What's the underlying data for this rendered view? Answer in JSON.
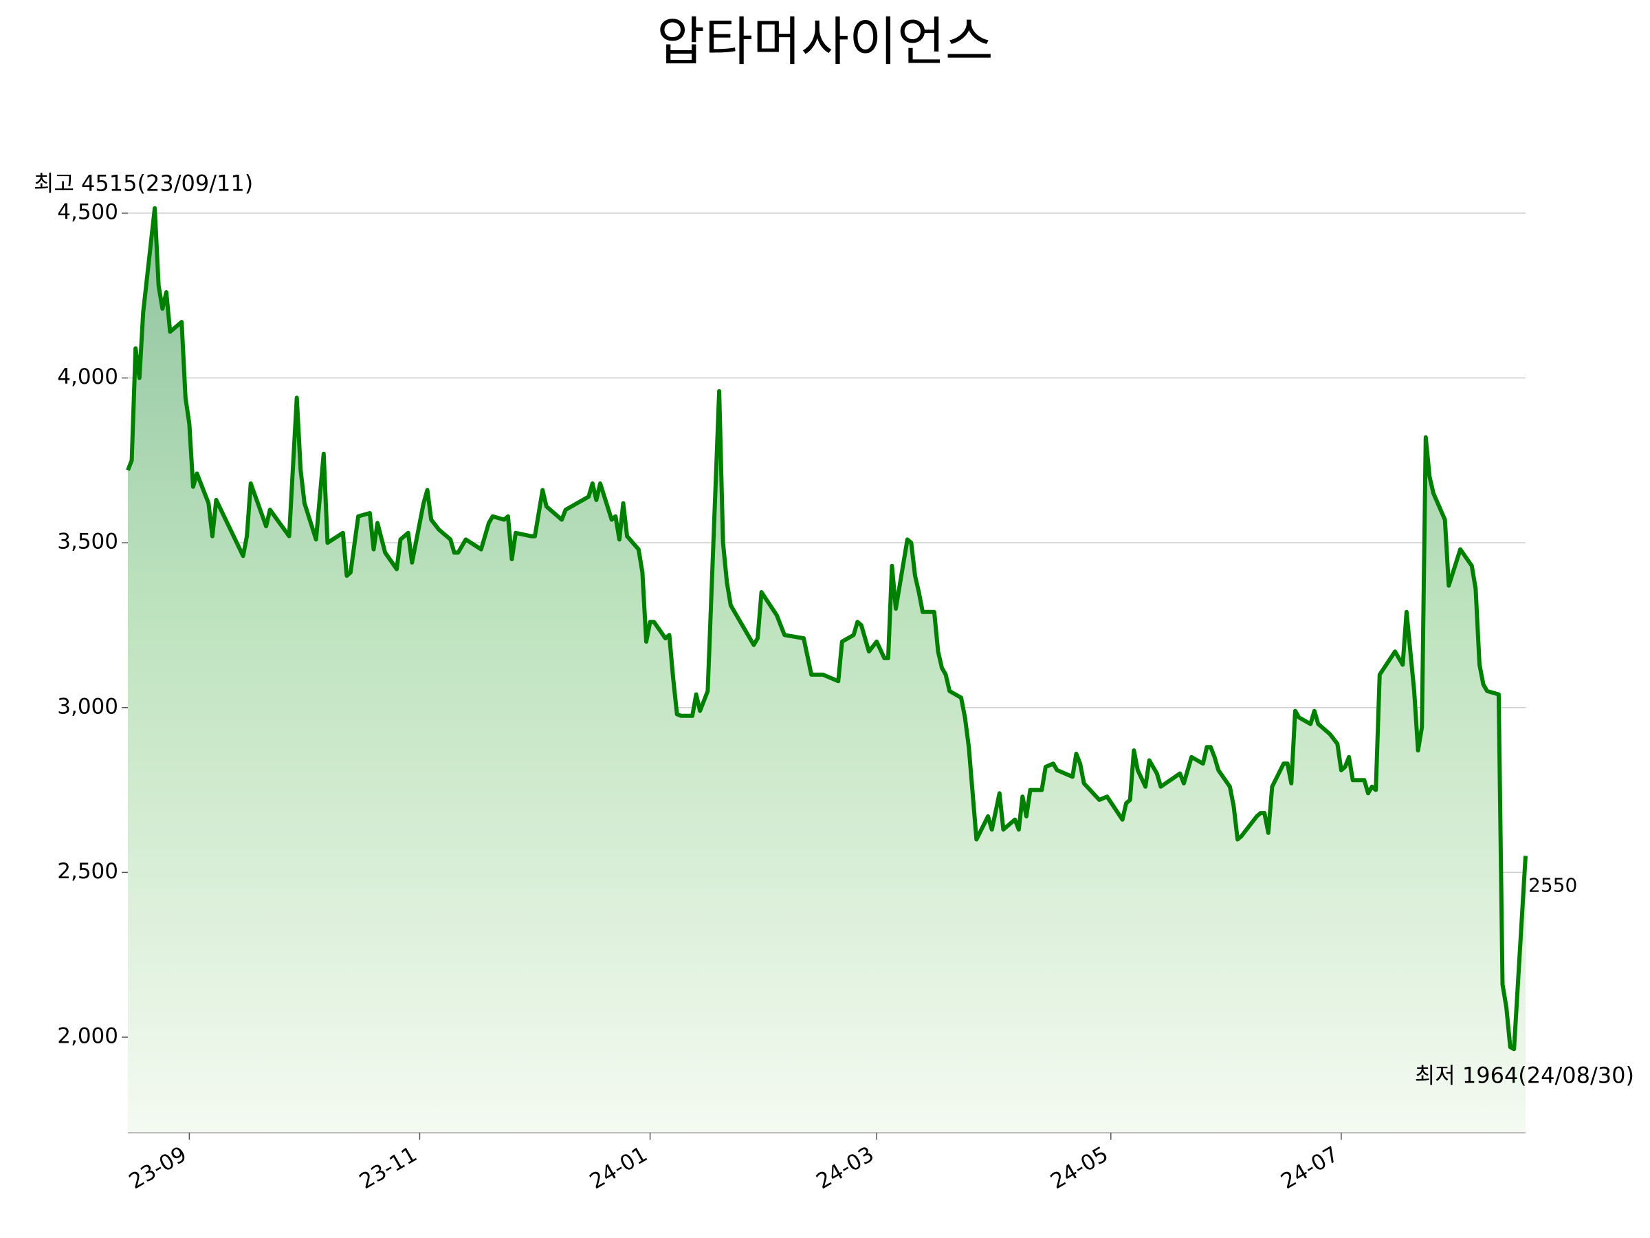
{
  "chart_data": {
    "type": "line",
    "title": "압타머사이언스",
    "color": "#008000",
    "grid": true,
    "x": [
      "2023-09-04",
      "2023-09-05",
      "2023-09-06",
      "2023-09-07",
      "2023-09-08",
      "2023-09-11",
      "2023-09-12",
      "2023-09-13",
      "2023-09-14",
      "2023-09-15",
      "2023-09-18",
      "2023-09-19",
      "2023-09-20",
      "2023-09-21",
      "2023-09-22",
      "2023-09-25",
      "2023-09-26",
      "2023-09-27",
      "2023-10-04",
      "2023-10-05",
      "2023-10-06",
      "2023-10-10",
      "2023-10-11",
      "2023-10-16",
      "2023-10-18",
      "2023-10-19",
      "2023-10-20",
      "2023-10-23",
      "2023-10-25",
      "2023-10-26",
      "2023-10-30",
      "2023-10-31",
      "2023-11-01",
      "2023-11-03",
      "2023-11-06",
      "2023-11-07",
      "2023-11-08",
      "2023-11-10",
      "2023-11-13",
      "2023-11-14",
      "2023-11-16",
      "2023-11-17",
      "2023-11-20",
      "2023-11-21",
      "2023-11-22",
      "2023-11-24",
      "2023-11-27",
      "2023-11-28",
      "2023-11-29",
      "2023-12-01",
      "2023-12-05",
      "2023-12-07",
      "2023-12-08",
      "2023-12-11",
      "2023-12-12",
      "2023-12-13",
      "2023-12-14",
      "2023-12-18",
      "2023-12-19",
      "2023-12-21",
      "2023-12-22",
      "2023-12-26",
      "2023-12-27",
      "2024-01-02",
      "2024-01-03",
      "2024-01-04",
      "2024-01-05",
      "2024-01-08",
      "2024-01-09",
      "2024-01-10",
      "2024-01-11",
      "2024-01-12",
      "2024-01-15",
      "2024-01-16",
      "2024-01-17",
      "2024-01-18",
      "2024-01-19",
      "2024-01-22",
      "2024-01-23",
      "2024-01-24",
      "2024-01-25",
      "2024-01-26",
      "2024-01-29",
      "2024-01-30",
      "2024-01-31",
      "2024-02-02",
      "2024-02-05",
      "2024-02-06",
      "2024-02-07",
      "2024-02-08",
      "2024-02-14",
      "2024-02-15",
      "2024-02-16",
      "2024-02-20",
      "2024-02-22",
      "2024-02-27",
      "2024-02-29",
      "2024-03-03",
      "2024-03-07",
      "2024-03-08",
      "2024-03-11",
      "2024-03-12",
      "2024-03-13",
      "2024-03-15",
      "2024-03-17",
      "2024-03-19",
      "2024-03-20",
      "2024-03-21",
      "2024-03-22",
      "2024-03-25",
      "2024-03-26",
      "2024-03-27",
      "2024-03-28",
      "2024-03-29",
      "2024-04-01",
      "2024-04-02",
      "2024-04-03",
      "2024-04-04",
      "2024-04-05",
      "2024-04-08",
      "2024-04-09",
      "2024-04-10",
      "2024-04-12",
      "2024-04-15",
      "2024-04-16",
      "2024-04-18",
      "2024-04-19",
      "2024-04-22",
      "2024-04-23",
      "2024-04-24",
      "2024-04-25",
      "2024-04-26",
      "2024-04-29",
      "2024-04-30",
      "2024-05-02",
      "2024-05-03",
      "2024-05-07",
      "2024-05-08",
      "2024-05-09",
      "2024-05-10",
      "2024-05-14",
      "2024-05-16",
      "2024-05-20",
      "2024-05-21",
      "2024-05-22",
      "2024-05-23",
      "2024-05-24",
      "2024-05-26",
      "2024-05-27",
      "2024-05-29",
      "2024-05-30",
      "2024-06-04",
      "2024-06-05",
      "2024-06-07",
      "2024-06-10",
      "2024-06-11",
      "2024-06-12",
      "2024-06-13",
      "2024-06-14",
      "2024-06-17",
      "2024-06-18",
      "2024-06-19",
      "2024-06-20",
      "2024-06-24",
      "2024-06-25",
      "2024-06-26",
      "2024-06-27",
      "2024-06-28",
      "2024-07-01",
      "2024-07-02",
      "2024-07-03",
      "2024-07-04",
      "2024-07-05",
      "2024-07-08",
      "2024-07-09",
      "2024-07-10",
      "2024-07-11",
      "2024-07-13",
      "2024-07-15",
      "2024-07-16",
      "2024-07-17",
      "2024-07-18",
      "2024-07-19",
      "2024-07-22",
      "2024-07-23",
      "2024-07-24",
      "2024-07-25",
      "2024-07-26",
      "2024-07-30",
      "2024-08-01",
      "2024-08-02",
      "2024-08-04",
      "2024-08-05",
      "2024-08-06",
      "2024-08-07",
      "2024-08-08",
      "2024-08-09",
      "2024-08-12",
      "2024-08-13",
      "2024-08-16",
      "2024-08-19",
      "2024-08-20",
      "2024-08-21",
      "2024-08-22",
      "2024-08-23",
      "2024-08-26",
      "2024-08-27",
      "2024-08-28",
      "2024-08-29",
      "2024-08-30",
      "2024-09-02"
    ],
    "values": [
      3720,
      3750,
      4090,
      4000,
      4200,
      4515,
      4280,
      4210,
      4260,
      4140,
      4170,
      3940,
      3860,
      3670,
      3710,
      3620,
      3520,
      3630,
      3460,
      3520,
      3680,
      3550,
      3600,
      3520,
      3940,
      3720,
      3620,
      3510,
      3770,
      3500,
      3530,
      3400,
      3410,
      3580,
      3590,
      3480,
      3560,
      3470,
      3420,
      3510,
      3530,
      3440,
      3620,
      3660,
      3570,
      3540,
      3510,
      3470,
      3470,
      3510,
      3480,
      3560,
      3580,
      3570,
      3580,
      3450,
      3530,
      3520,
      3520,
      3660,
      3610,
      3570,
      3600,
      3640,
      3680,
      3630,
      3680,
      3570,
      3580,
      3510,
      3620,
      3520,
      3480,
      3410,
      3200,
      3260,
      3260,
      3210,
      3220,
      3090,
      2980,
      2975,
      2975,
      3040,
      2990,
      3050,
      3960,
      3500,
      3380,
      3310,
      3190,
      3210,
      3350,
      3280,
      3220,
      3210,
      3100,
      3100,
      3080,
      3200,
      3220,
      3260,
      3250,
      3170,
      3200,
      3150,
      3150,
      3430,
      3300,
      3510,
      3500,
      3400,
      3350,
      3290,
      3290,
      3170,
      3120,
      3100,
      3050,
      3030,
      2970,
      2880,
      2600,
      2670,
      2630,
      2740,
      2630,
      2660,
      2630,
      2730,
      2670,
      2750,
      2750,
      2820,
      2830,
      2810,
      2790,
      2860,
      2830,
      2770,
      2720,
      2730,
      2660,
      2710,
      2720,
      2870,
      2810,
      2760,
      2840,
      2800,
      2760,
      2800,
      2770,
      2850,
      2830,
      2880,
      2880,
      2850,
      2810,
      2760,
      2700,
      2600,
      2610,
      2670,
      2680,
      2680,
      2620,
      2760,
      2830,
      2830,
      2770,
      2990,
      2970,
      2950,
      2990,
      2950,
      2940,
      2920,
      2890,
      2810,
      2820,
      2850,
      2780,
      2780,
      2740,
      2760,
      2750,
      3100,
      3170,
      3130,
      3290,
      3050,
      2870,
      2940,
      3820,
      3700,
      3650,
      3570,
      3370,
      3480,
      3430,
      3360,
      3130,
      3070,
      3050,
      3040,
      2160,
      2090,
      1970,
      1964,
      2550
    ],
    "xlim": [
      "2023-09-04",
      "2024-09-02"
    ],
    "xticks": [
      {
        "value": "2023-09-20",
        "label": "23-09"
      },
      {
        "value": "2023-11-19",
        "label": "23-11"
      },
      {
        "value": "2024-01-18",
        "label": "24-01"
      },
      {
        "value": "2024-03-17",
        "label": "24-03"
      },
      {
        "value": "2024-05-17",
        "label": "24-05"
      },
      {
        "value": "2024-07-16",
        "label": "24-07"
      }
    ],
    "ylim": [
      1710,
      4600
    ],
    "yticks": [
      {
        "value": 2000,
        "label": "2,000"
      },
      {
        "value": 2500,
        "label": "2,500"
      },
      {
        "value": 3000,
        "label": "3,000"
      },
      {
        "value": 3500,
        "label": "3,500"
      },
      {
        "value": 4000,
        "label": "4,000"
      },
      {
        "value": 4500,
        "label": "4,500"
      }
    ],
    "annotations": [
      {
        "text": "최고 4515(23/09/11)",
        "color": "#ff0000",
        "anchor": "max"
      },
      {
        "text": "최저 1964(24/08/30)",
        "color": "#0000ff",
        "anchor": "min"
      },
      {
        "text": "2550",
        "color": "#000000",
        "anchor": "last"
      }
    ]
  }
}
